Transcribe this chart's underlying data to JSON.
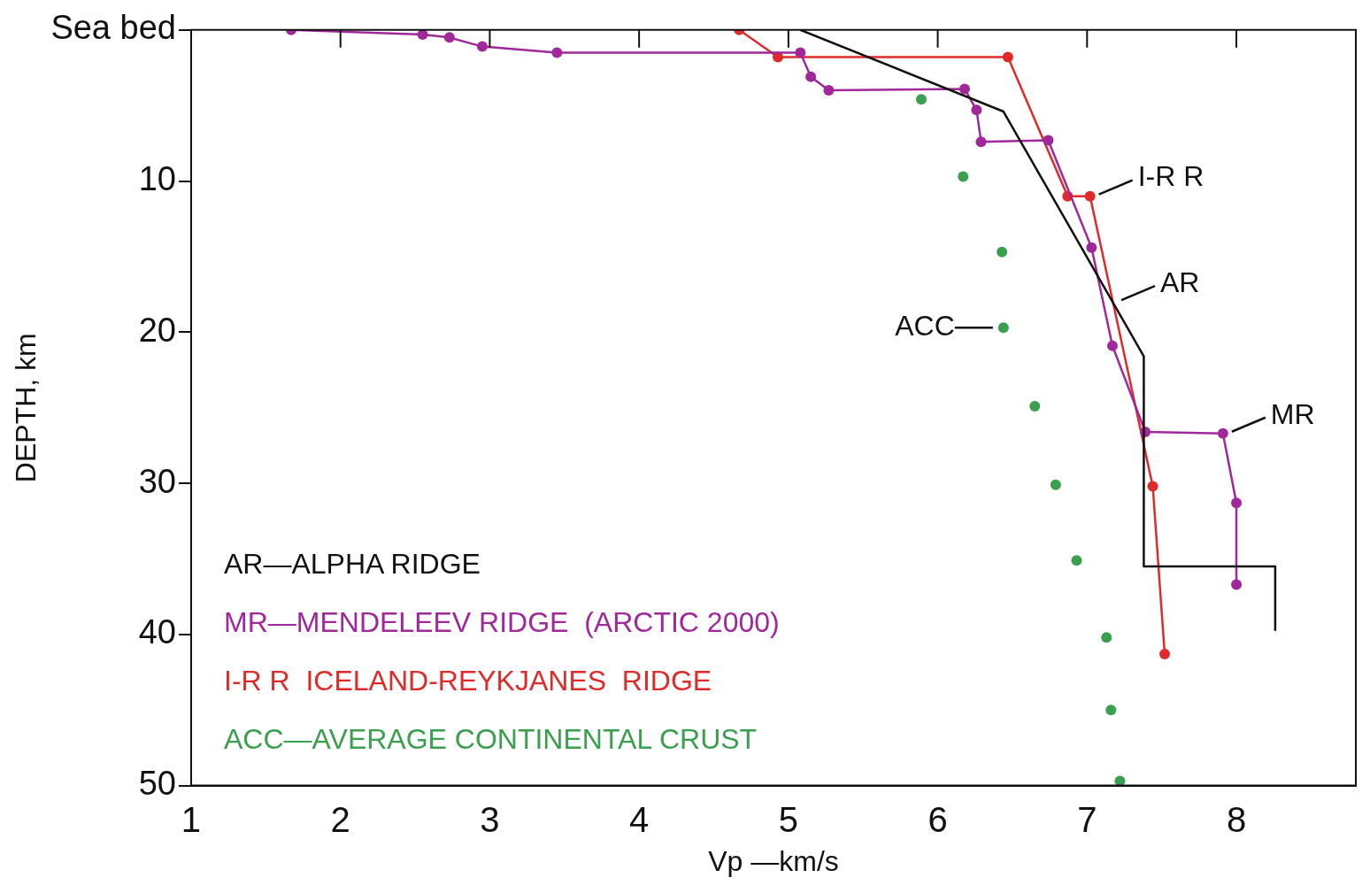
{
  "chart_data": {
    "type": "line",
    "xlabel": "Vp —km/s",
    "ylabel": "DEPTH, km",
    "xlim": [
      1,
      8.8
    ],
    "xticks": [
      1,
      2,
      3,
      4,
      5,
      6,
      7,
      8
    ],
    "ylim": [
      50,
      0
    ],
    "yticks": [
      {
        "value": 0,
        "label": "Sea bed"
      },
      10,
      20,
      30,
      40,
      50
    ],
    "legend": "bottom left",
    "series": [
      {
        "name": "AR—ALPHA RIDGE",
        "marker": "none",
        "color": "#111111",
        "x": [
          5.08,
          6.44,
          7.38,
          7.38,
          8.26,
          8.26
        ],
        "values": [
          0,
          5.4,
          21.6,
          35.5,
          35.5,
          39.7
        ]
      },
      {
        "name": "MR—MENDELEEV RIDGE  (ARCTIC 2000)",
        "marker": "circle",
        "color": "#a0289a",
        "x": [
          1.67,
          2.55,
          2.73,
          2.95,
          3.45,
          5.08,
          5.15,
          5.27,
          6.18,
          6.26,
          6.29,
          6.74,
          7.03,
          7.17,
          7.39,
          7.91,
          8.0,
          8.0
        ],
        "values": [
          0,
          0.3,
          0.5,
          1.1,
          1.5,
          1.5,
          3.1,
          4.0,
          3.9,
          5.3,
          7.4,
          7.3,
          14.4,
          20.9,
          26.6,
          26.7,
          31.3,
          36.7
        ]
      },
      {
        "name": "I-R R  ICELAND-REYKJANES  RIDGE",
        "marker": "circle",
        "color": "#e02a2a",
        "x": [
          4.67,
          4.93,
          6.47,
          6.87,
          7.02,
          7.44,
          7.52
        ],
        "values": [
          0,
          1.8,
          1.8,
          11.0,
          11.0,
          30.2,
          41.3
        ]
      },
      {
        "name": "ACC—AVERAGE CONTINENTAL CRUST",
        "type": "scatter",
        "marker": "circle",
        "color": "#3aa050",
        "x": [
          5.89,
          6.17,
          6.43,
          6.44,
          6.65,
          6.79,
          6.93,
          7.13,
          7.16,
          7.22
        ],
        "values": [
          4.6,
          9.7,
          14.7,
          19.7,
          24.9,
          30.1,
          35.1,
          40.2,
          45.0,
          49.7
        ]
      }
    ],
    "annotations": [
      {
        "text": "I-R R",
        "x": 7.02,
        "y": 11.0
      },
      {
        "text": "AR",
        "x": 7.17,
        "y": 18.0
      },
      {
        "text": "MR",
        "x": 7.91,
        "y": 26.7
      },
      {
        "text": "ACC",
        "x": 6.44,
        "y": 19.7
      }
    ]
  }
}
